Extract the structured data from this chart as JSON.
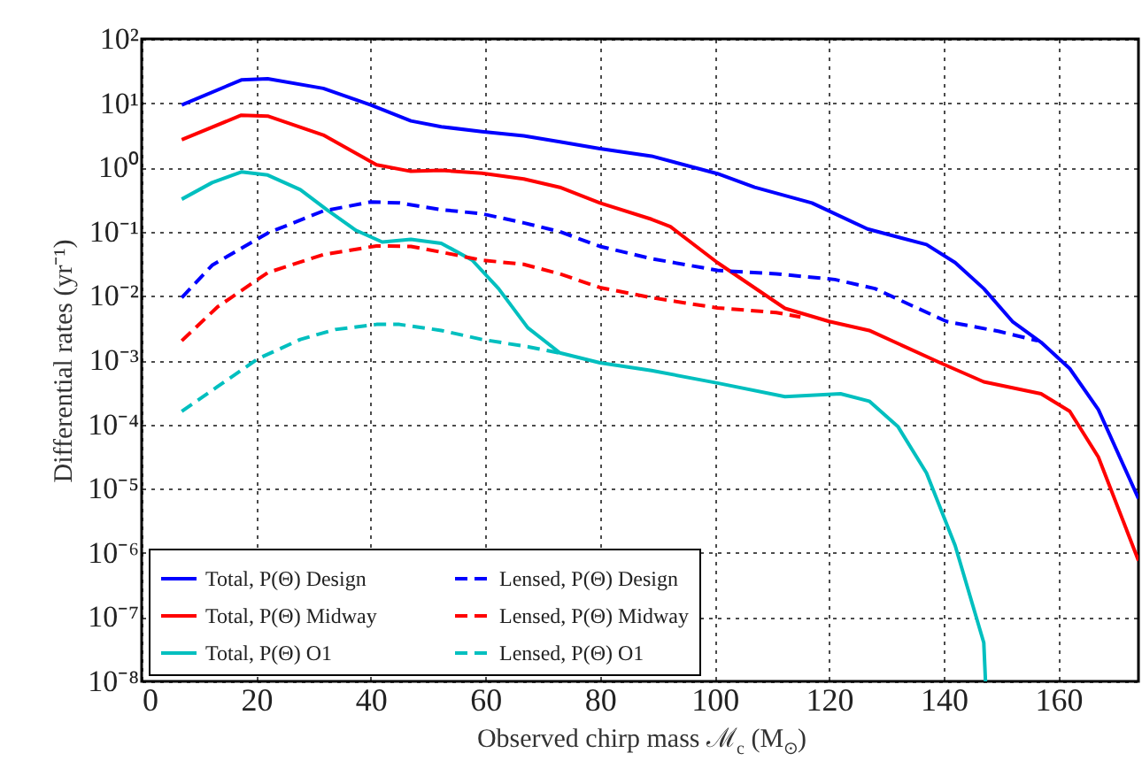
{
  "chart_data": {
    "type": "line",
    "ylabel": "Differential rates (yr⁻¹)",
    "xlabel": "Observed chirp mass ℳ$_{c}$ (M$_{⊙}$)",
    "log": "y",
    "grid": true,
    "legend": "bottom left",
    "xlim": [
      0,
      174
    ],
    "xticks": [
      0,
      20,
      40,
      60,
      80,
      100,
      120,
      140,
      160
    ],
    "ylim": [
      1e-08,
      100
    ],
    "yticks": [
      {
        "value": 1e-08,
        "label": "10⁻⁸"
      },
      {
        "value": 1e-07,
        "label": "10⁻⁷"
      },
      {
        "value": 1e-06,
        "label": "10⁻⁶"
      },
      {
        "value": 1e-05,
        "label": "10⁻⁵"
      },
      {
        "value": 0.0001,
        "label": "10⁻⁴"
      },
      {
        "value": 0.001,
        "label": "10⁻³"
      },
      {
        "value": 0.01,
        "label": "10⁻²"
      },
      {
        "value": 0.1,
        "label": "10⁻¹"
      },
      {
        "value": 1,
        "label": "10⁰"
      },
      {
        "value": 10,
        "label": "10¹"
      },
      {
        "value": 100,
        "label": "10²"
      }
    ],
    "series": [
      {
        "name": "Total, P(Θ) Design",
        "color": "#0000ff",
        "line_style": "solid",
        "x": [
          7,
          17.4,
          22,
          31.7,
          40,
          47,
          52.3,
          59.4,
          66.7,
          73,
          80,
          89,
          100.5,
          107,
          117,
          126.7,
          137,
          142,
          147,
          152,
          157,
          162,
          167,
          174
        ],
        "values": [
          9.4,
          23,
          24,
          17,
          9.4,
          5.3,
          4.3,
          3.6,
          3.1,
          2.5,
          1.96,
          1.5,
          0.8,
          0.49,
          0.28,
          0.11,
          0.063,
          0.033,
          0.013,
          0.004,
          0.0019,
          0.00074,
          0.00017,
          7e-06
        ]
      },
      {
        "name": "Total, P(Θ) Midway",
        "color": "#ff0000",
        "line_style": "solid",
        "x": [
          7,
          17.4,
          22,
          31.7,
          41,
          47,
          52.3,
          59.4,
          66.7,
          73,
          80,
          89,
          92.3,
          100.5,
          112.3,
          120,
          127,
          139.4,
          147,
          157,
          162,
          167,
          174
        ],
        "values": [
          2.7,
          6.5,
          6.3,
          3.2,
          1.1,
          0.87,
          0.9,
          0.81,
          0.66,
          0.49,
          0.28,
          0.156,
          0.12,
          0.033,
          0.0064,
          0.004,
          0.0029,
          0.00091,
          0.00046,
          0.0003,
          0.00016,
          3.1e-05,
          7.6e-07
        ]
      },
      {
        "name": "Total, P(Θ) O1",
        "color": "#00bfbf",
        "line_style": "solid",
        "x": [
          7,
          12.3,
          17.4,
          22,
          27.7,
          32.3,
          37.4,
          42,
          47,
          52.3,
          57.7,
          62.3,
          67.4,
          73,
          80,
          89,
          100.5,
          112.3,
          122,
          127,
          132,
          137,
          142,
          147,
          147.3
        ],
        "values": [
          0.32,
          0.58,
          0.85,
          0.76,
          0.45,
          0.22,
          0.105,
          0.069,
          0.076,
          0.066,
          0.036,
          0.013,
          0.0032,
          0.0013,
          0.00091,
          0.00069,
          0.00044,
          0.00027,
          0.0003,
          0.00023,
          9.3e-05,
          1.75e-05,
          1.3e-06,
          4e-08,
          1e-08
        ]
      },
      {
        "name": "Lensed, P(Θ) Design",
        "color": "#0000ff",
        "line_style": "dashed",
        "x": [
          7,
          12.3,
          22,
          31.7,
          40,
          45,
          52.3,
          59.4,
          66.7,
          73,
          80,
          89,
          100.5,
          110.8,
          121,
          128,
          134.4,
          140.5,
          149.7,
          156.4
        ],
        "values": [
          0.0094,
          0.03,
          0.095,
          0.21,
          0.29,
          0.28,
          0.22,
          0.19,
          0.137,
          0.1,
          0.059,
          0.038,
          0.025,
          0.022,
          0.018,
          0.013,
          0.0071,
          0.004,
          0.0028,
          0.002
        ]
      },
      {
        "name": "Lensed, P(Θ) Midway",
        "color": "#ff0000",
        "line_style": "dashed",
        "x": [
          7,
          13.3,
          22,
          31.7,
          41,
          47,
          52.3,
          59.4,
          66.7,
          73,
          80,
          89,
          100.5,
          110.8,
          115
        ],
        "values": [
          0.002,
          0.0068,
          0.023,
          0.044,
          0.06,
          0.059,
          0.048,
          0.036,
          0.031,
          0.022,
          0.0135,
          0.0094,
          0.0065,
          0.0055,
          0.0047
        ]
      },
      {
        "name": "Lensed, P(Θ) O1",
        "color": "#00bfbf",
        "line_style": "dashed",
        "x": [
          7,
          13.3,
          20.3,
          27.7,
          33.8,
          41,
          45,
          52.3,
          59.4,
          67.7,
          72.8
        ],
        "values": [
          0.00016,
          0.00039,
          0.00105,
          0.0021,
          0.003,
          0.0036,
          0.0036,
          0.0029,
          0.0021,
          0.0016,
          0.0013
        ]
      }
    ]
  }
}
